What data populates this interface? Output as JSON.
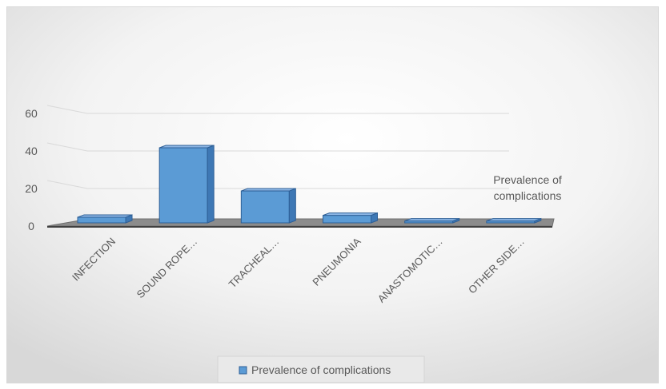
{
  "chart_data": {
    "type": "bar",
    "style": "3d-column",
    "categories": [
      "INFECTION",
      "SOUND ROPE…",
      "TRACHEAL…",
      "PNEUMONIA",
      "ANASTOMOTIC…",
      "OTHER SIDE…"
    ],
    "series": [
      {
        "name": "Prevalence of complications",
        "values": [
          3,
          40,
          17,
          4,
          1,
          1
        ]
      }
    ],
    "title": "",
    "xlabel": "",
    "ylabel": "",
    "ylim": [
      0,
      60
    ],
    "yticks": [
      0,
      20,
      40,
      60
    ],
    "grid": true,
    "legend_position": "bottom",
    "side_label": "Prevalence of complications",
    "colors": {
      "bar_front": "#5b9bd5",
      "bar_top": "#8db7e6",
      "bar_side": "#3e78b5",
      "bar_stroke": "#2e5f96",
      "floor": "#8c8c8c",
      "gridline": "#d9d9d9",
      "text": "#595959"
    }
  }
}
